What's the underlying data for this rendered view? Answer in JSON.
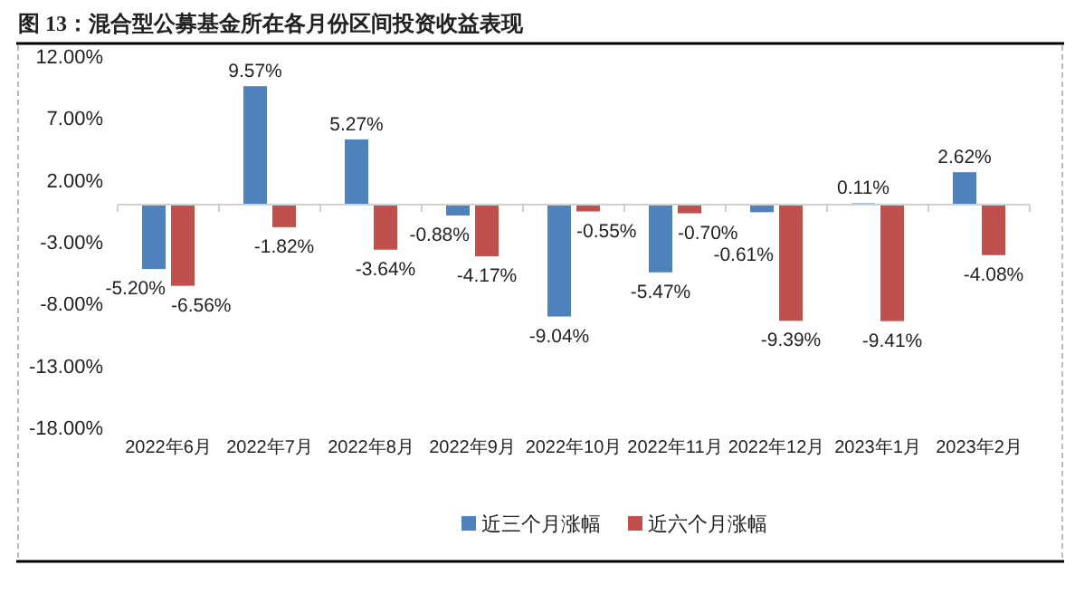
{
  "chart_data": {
    "type": "bar",
    "title": "图 13：混合型公募基金所在各月份区间投资收益表现",
    "categories": [
      "2022年6月",
      "2022年7月",
      "2022年8月",
      "2022年9月",
      "2022年10月",
      "2022年11月",
      "2022年12月",
      "2023年1月",
      "2023年2月"
    ],
    "series": [
      {
        "name": "近三个月涨幅",
        "color": "#4f81bd",
        "values": [
          -5.2,
          9.57,
          5.27,
          -0.88,
          -9.04,
          -5.47,
          -0.61,
          0.11,
          2.62
        ],
        "value_labels": [
          "-5.20%",
          "9.57%",
          "5.27%",
          "-0.88%",
          "-9.04%",
          "-5.47%",
          "-0.61%",
          "0.11%",
          "2.62%"
        ]
      },
      {
        "name": "近六个月涨幅",
        "color": "#c0504d",
        "values": [
          -6.56,
          -1.82,
          -3.64,
          -4.17,
          -0.55,
          -0.7,
          -9.39,
          -9.41,
          -4.08
        ],
        "value_labels": [
          "-6.56%",
          "-1.82%",
          "-3.64%",
          "-4.17%",
          "-0.55%",
          "-0.70%",
          "-9.39%",
          "-9.41%",
          "-4.08%"
        ]
      }
    ],
    "ylim": [
      -18,
      12
    ],
    "yticks": [
      {
        "value": 12,
        "label": "12.00%"
      },
      {
        "value": 7,
        "label": "7.00%"
      },
      {
        "value": 2,
        "label": "2.00%"
      },
      {
        "value": -3,
        "label": "-3.00%"
      },
      {
        "value": -8,
        "label": "-8.00%"
      },
      {
        "value": -13,
        "label": "-13.00%"
      },
      {
        "value": -18,
        "label": "-18.00%"
      }
    ],
    "grid": false,
    "legend": "bottom"
  }
}
